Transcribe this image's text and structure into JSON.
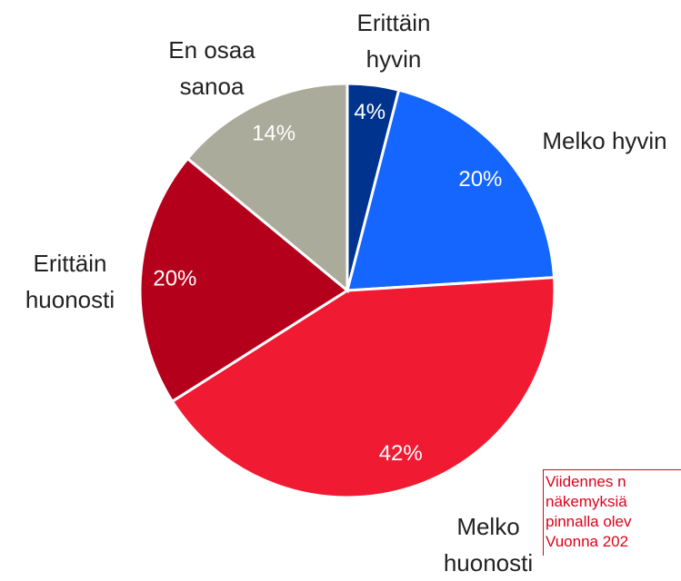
{
  "chart_data": {
    "type": "pie",
    "categories": [
      "Erittäin hyvin",
      "Melko hyvin",
      "Melko huonosti",
      "Erittäin huonosti",
      "En osaa sanoa"
    ],
    "values": [
      4,
      20,
      42,
      20,
      14
    ],
    "value_labels": [
      "4%",
      "20%",
      "42%",
      "20%",
      "14%"
    ],
    "colors": [
      "#00338d",
      "#1565ff",
      "#f01b32",
      "#b5001c",
      "#abab9b"
    ],
    "annotation": [
      "Viidennes n",
      "näkemyksiä",
      "pinnalla olev",
      "Vuonna 202"
    ]
  }
}
